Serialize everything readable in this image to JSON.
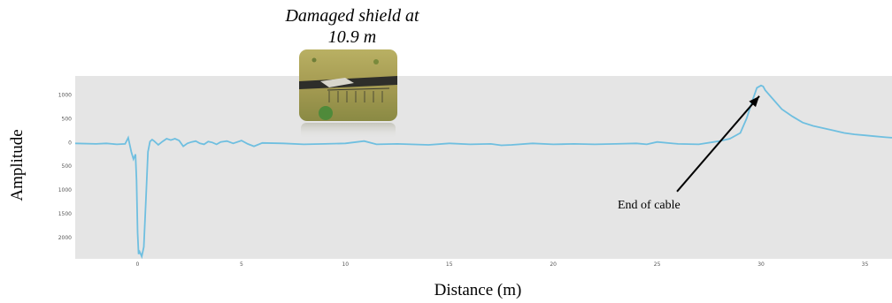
{
  "chart_data": {
    "type": "line",
    "title": "",
    "xlabel": "Distance (m)",
    "ylabel": "Amplitude",
    "xlim": [
      -3,
      36.3
    ],
    "ylim": [
      -2450,
      1400
    ],
    "x_ticks": [
      0,
      5,
      10,
      15,
      20,
      25,
      30,
      35
    ],
    "y_ticks": [
      1000,
      500,
      0,
      -500,
      -1000,
      -1500,
      -2000
    ],
    "y_tick_labels": [
      "1000",
      "500",
      "0",
      "500",
      "1000",
      "1500",
      "2000"
    ],
    "grid": false,
    "background": "#e5e5e5",
    "line_color": "#6fbfe0",
    "series": [
      {
        "x": [
          -3,
          -2,
          -1.5,
          -1,
          -0.6,
          -0.45,
          -0.3,
          -0.2,
          -0.1,
          -0.05,
          0,
          0.05,
          0.1,
          0.2,
          0.3,
          0.4,
          0.5,
          0.6,
          0.7,
          0.8,
          1.0,
          1.2,
          1.4,
          1.6,
          1.8,
          2.0,
          2.2,
          2.4,
          2.6,
          2.8,
          3.0,
          3.2,
          3.4,
          3.6,
          3.8,
          4.0,
          4.3,
          4.6,
          5.0,
          5.3,
          5.6,
          6.0,
          7.0,
          8.0,
          9.0,
          10.0,
          10.9,
          11.5,
          12.5,
          14.0,
          15.0,
          16.0,
          17.0,
          17.5,
          18.0,
          19.0,
          20.0,
          21.0,
          22.0,
          23.0,
          24.0,
          24.5,
          25.0,
          26.0,
          27.0,
          28.0,
          28.5,
          29.0,
          29.3,
          29.6,
          29.8,
          30.0,
          30.1,
          30.2,
          30.4,
          30.7,
          31.0,
          31.5,
          32.0,
          32.5,
          33.0,
          33.5,
          34.0,
          34.5,
          35.0,
          35.5,
          36.0,
          36.3
        ],
        "y": [
          -20,
          -30,
          -20,
          -40,
          -30,
          100,
          -200,
          -350,
          -250,
          -800,
          -1900,
          -2350,
          -2300,
          -2400,
          -2200,
          -1200,
          -200,
          20,
          60,
          30,
          -50,
          20,
          80,
          50,
          80,
          40,
          -80,
          -20,
          10,
          30,
          -20,
          -40,
          20,
          0,
          -40,
          10,
          30,
          -20,
          40,
          -30,
          -80,
          -10,
          -20,
          -40,
          -30,
          -20,
          30,
          -40,
          -30,
          -50,
          -20,
          -40,
          -30,
          -60,
          -50,
          -20,
          -40,
          -30,
          -40,
          -30,
          -20,
          -40,
          10,
          -30,
          -40,
          30,
          80,
          200,
          500,
          900,
          1150,
          1200,
          1180,
          1100,
          1000,
          850,
          700,
          550,
          420,
          350,
          300,
          250,
          200,
          170,
          150,
          130,
          110,
          100
        ]
      }
    ],
    "annotations": {
      "callout_line1": "Damaged shield at",
      "callout_line2": "10.9 m",
      "end_label": "End of cable",
      "end_x": 30,
      "end_y": 1050
    }
  },
  "icons": {
    "photo": "damaged-cable-photo"
  }
}
